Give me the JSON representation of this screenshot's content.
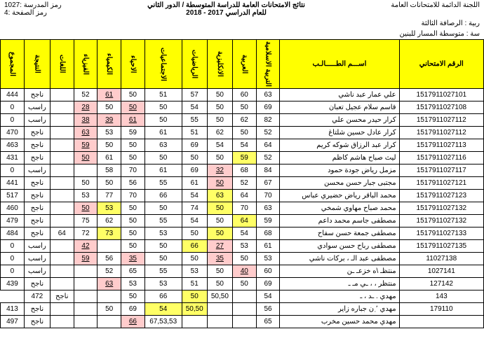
{
  "header": {
    "committee": "اللجنة الدائمة للامتحانات العامة",
    "title1": "نتائج الامتحانات العامة للدراسة المتوسطة / الدور الثاني",
    "title2": "للعام الدراسي 2017 - 2018",
    "school_code_label": "رمز المدرسة :",
    "school_code": "1027",
    "page_label": "رمز الصفحة :",
    "page": "4",
    "gov_label": "ربية : الرصافة الثالثة",
    "school_label": "سة : متوسطة المسار للبنين"
  },
  "columns": {
    "exam_no": "الرقم الامتحاني",
    "name": "اســـم الطـــــالـب",
    "islamic": "التربية الاسلامية",
    "arabic": "العربية",
    "english": "الانكليزية",
    "math": "الرياضيات",
    "social": "الاجتماعيات",
    "biology": "الاحياء",
    "chemistry": "الكيمياء",
    "physics": "الفيزياء",
    "fine": "اللغات",
    "result": "النتيجة",
    "total": "المجموع"
  },
  "rows": [
    {
      "exam": "1517911027101",
      "name": "علي عمار عبد ناشي",
      "s": [
        63,
        60,
        50,
        57,
        51,
        50,
        "61f",
        52,
        "",
        "ناجح",
        444
      ]
    },
    {
      "exam": "1517911027108",
      "name": "قاسم سلام عجيل تعبان",
      "s": [
        69,
        50,
        50,
        54,
        50,
        "50f",
        50,
        "28f",
        "",
        "راسب",
        0
      ]
    },
    {
      "exam": "1517911027112",
      "name": "كرار حيدر محسن علي",
      "s": [
        82,
        62,
        50,
        55,
        50,
        "61f",
        "39f",
        "38f",
        "",
        "راسب",
        0
      ]
    },
    {
      "exam": "1517911027112",
      "name": "كرار عادل حسين شلتاغ",
      "s": [
        52,
        50,
        62,
        51,
        61,
        59,
        53,
        "63f",
        "",
        "ناجح",
        470
      ]
    },
    {
      "exam": "1517911027113",
      "name": "كرار عبد الرزاق شوكه كريم",
      "s": [
        64,
        54,
        54,
        69,
        63,
        50,
        50,
        "59f",
        "",
        "ناجح",
        463
      ]
    },
    {
      "exam": "1517911027116",
      "name": "ليث صباح هاشم كاظم",
      "s": [
        52,
        "59h",
        50,
        50,
        50,
        50,
        61,
        "50f",
        "",
        "ناجح",
        431
      ]
    },
    {
      "exam": "1517911027117",
      "name": "مزمل رياض جودة حمود",
      "s": [
        84,
        68,
        "32f",
        69,
        61,
        70,
        58,
        "",
        "",
        "راسب",
        0
      ]
    },
    {
      "exam": "1517911027121",
      "name": "مجتبى جبار حسن محسن",
      "s": [
        67,
        52,
        "50f",
        61,
        55,
        56,
        50,
        50,
        "",
        "ناجح",
        441
      ]
    },
    {
      "exam": "1517911027123",
      "name": "محمد الباقر رياض حضيري عباس",
      "s": [
        70,
        64,
        "63h",
        54,
        66,
        70,
        77,
        53,
        "",
        "ناجح",
        517
      ]
    },
    {
      "exam": "1517911027132",
      "name": "محمد صباح مهاوي شمخي",
      "s": [
        63,
        70,
        "50h",
        74,
        50,
        50,
        "53h",
        "50f",
        "",
        "ناجح",
        460
      ]
    },
    {
      "exam": "1517911027132",
      "name": "مصطفى جاسم محمد داعم",
      "s": [
        59,
        "64h",
        50,
        54,
        55,
        50,
        62,
        75,
        "",
        "ناجح",
        479
      ]
    },
    {
      "exam": "1517911027133",
      "name": "مصطفى جمعة حسن سفاح",
      "s": [
        68,
        54,
        "50h",
        50,
        53,
        50,
        "73h",
        72,
        64,
        "ناجح",
        484
      ]
    },
    {
      "exam": "1517911027135",
      "name": "مصطفى رباح حسن سوادي",
      "s": [
        61,
        53,
        "27f",
        "66h",
        50,
        50,
        "",
        "42f",
        "",
        "راسب",
        0
      ]
    },
    {
      "exam": "11027138",
      "name": "مصطفى عبد الـ       ، بركات ناشي",
      "s": [
        53,
        50,
        "35f",
        50,
        50,
        "35f",
        56,
        "59f",
        "",
        "راسب",
        0
      ]
    },
    {
      "exam": "1027141",
      "name": "منتظـ \\ه     خزعـ    ـن",
      "s": [
        60,
        "40f",
        50,
        53,
        55,
        65,
        52,
        "",
        "",
        "راسب",
        0
      ]
    },
    {
      "exam": "127142",
      "name": "منتظر ،     ، ـي مـ     ـ",
      "s": [
        69,
        50,
        50,
        51,
        53,
        53,
        "63f",
        "",
        "",
        "ناجح",
        439
      ]
    },
    {
      "exam": "143",
      "name": "مهدي .     ـد ،      ـ",
      "s": [
        54,
        "",
        "50,50",
        "50h",
        66,
        50,
        "",
        "",
        "ناجح",
        472
      ]
    },
    {
      "exam": "179110",
      "name": "مهدي ٬ ٜن جباره زاير",
      "s": [
        56,
        "",
        "",
        "50,50h",
        "54h",
        69,
        50,
        "",
        "",
        "ناجح",
        413
      ]
    },
    {
      "exam": "",
      "name": "مهدي محمد حسين مخرب",
      "s": [
        65,
        "",
        "",
        "",
        "67,53,53",
        "66f",
        "",
        "",
        "",
        "ناجح",
        497
      ]
    }
  ],
  "style": {
    "header_bg": "#ffff00",
    "fail_bg": "#ffcccc",
    "hl_bg": "#ffff66",
    "border": "#000000",
    "font_body": 10
  }
}
